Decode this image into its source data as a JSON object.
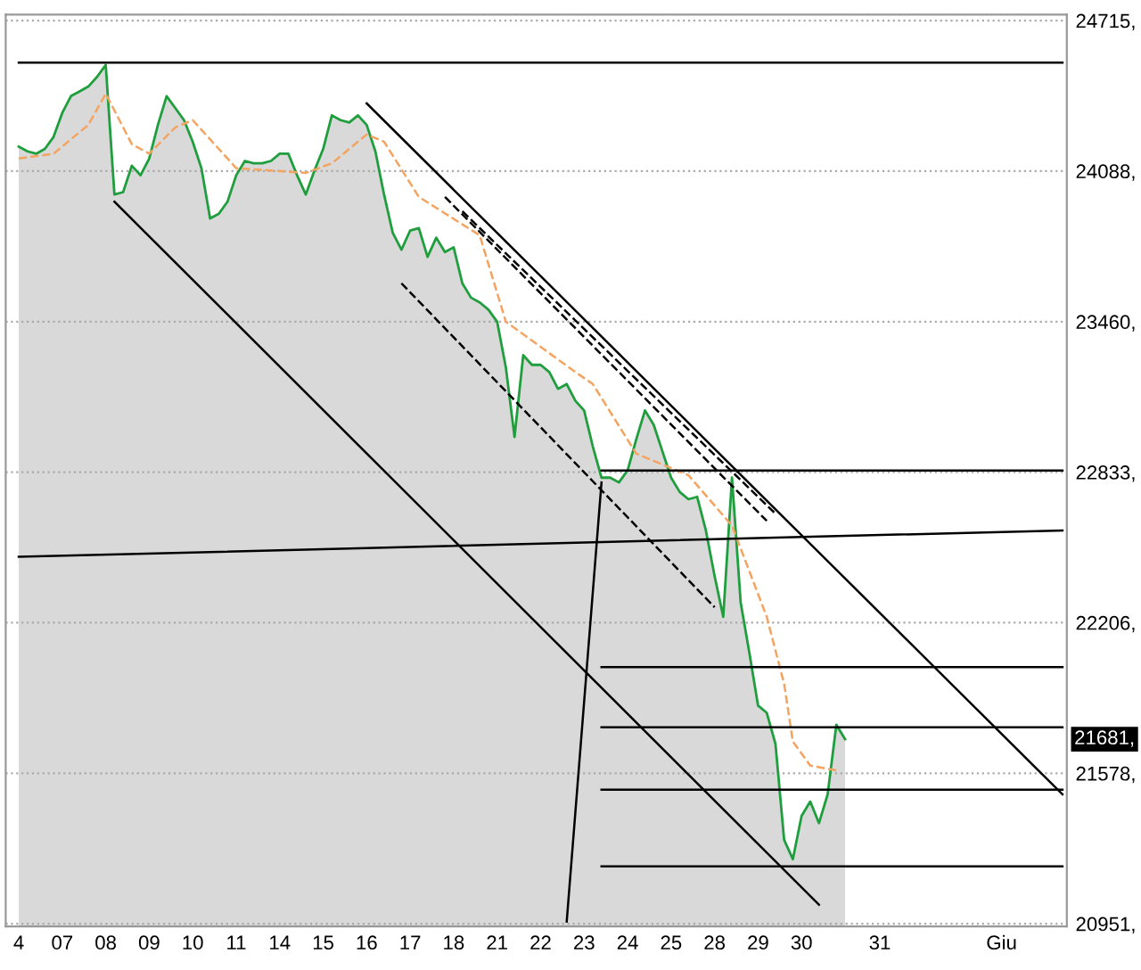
{
  "chart_data": {
    "type": "line",
    "grid": "y",
    "ylim": [
      20940,
      24740
    ],
    "categories": [
      "4",
      null,
      null,
      null,
      null,
      "07",
      null,
      null,
      null,
      null,
      "08",
      null,
      null,
      null,
      null,
      "09",
      null,
      null,
      null,
      null,
      "10",
      null,
      null,
      null,
      null,
      "11",
      null,
      null,
      null,
      null,
      "14",
      null,
      null,
      null,
      null,
      "15",
      null,
      null,
      null,
      null,
      "16",
      null,
      null,
      null,
      null,
      "17",
      null,
      null,
      null,
      null,
      "18",
      null,
      null,
      null,
      null,
      "21",
      null,
      null,
      null,
      null,
      "22",
      null,
      null,
      null,
      null,
      "23",
      null,
      null,
      null,
      null,
      "24",
      null,
      null,
      null,
      null,
      "25",
      null,
      null,
      null,
      null,
      "28",
      null,
      null,
      null,
      null,
      "29",
      null,
      null,
      null,
      null,
      "30",
      null,
      null,
      null,
      null,
      null,
      null,
      null,
      null,
      "31",
      null,
      null,
      null,
      null,
      null,
      null,
      null,
      null,
      null,
      null,
      null,
      null,
      null,
      "Giu",
      null,
      null,
      null,
      null,
      null,
      null,
      null
    ],
    "yticks": [
      {
        "value": 24715,
        "label": "24715,"
      },
      {
        "value": 24088,
        "label": "24088,"
      },
      {
        "value": 23460,
        "label": "23460,"
      },
      {
        "value": 22833,
        "label": "22833,"
      },
      {
        "value": 22206,
        "label": "22206,"
      },
      {
        "value": 21578,
        "label": "21578,"
      },
      {
        "value": 20951,
        "label": "20951,"
      }
    ],
    "annotations": [
      "21681,"
    ],
    "series": [
      {
        "type": "area",
        "color": "#1e9e3c",
        "values": [
          24190,
          24170,
          24160,
          24180,
          24230,
          24330,
          24400,
          24420,
          24440,
          24480,
          24530,
          23990,
          24000,
          24110,
          24070,
          24140,
          24280,
          24400,
          24350,
          24300,
          24210,
          24100,
          23890,
          23910,
          23960,
          24070,
          24130,
          24120,
          24120,
          24130,
          24160,
          24160,
          24070,
          23990,
          24090,
          24180,
          24320,
          24300,
          24290,
          24320,
          24280,
          24170,
          23990,
          23830,
          23760,
          23840,
          23850,
          23730,
          23810,
          23750,
          23770,
          23620,
          23560,
          23540,
          23510,
          23460,
          23270,
          22980,
          23320,
          23280,
          23280,
          23250,
          23180,
          23200,
          23130,
          23090,
          22940,
          22810,
          22810,
          22790,
          22840,
          22970,
          23090,
          23030,
          22920,
          22810,
          22750,
          22720,
          22730,
          22590,
          22400,
          22230,
          22810,
          22290,
          22080,
          21860,
          21830,
          21700,
          21300,
          21220,
          21400,
          21460,
          21370,
          21490,
          21780,
          21720,
          null,
          null,
          null,
          null,
          null,
          null,
          null,
          null,
          null,
          null,
          null,
          null,
          null,
          null,
          null,
          null,
          null,
          null,
          null,
          null,
          null,
          null,
          null,
          null,
          null
        ]
      },
      {
        "color": "#f4a460",
        "line_style": "dashed",
        "values": [
          24140,
          null,
          null,
          null,
          24160,
          null,
          null,
          null,
          24280,
          null,
          24410,
          null,
          null,
          24200,
          null,
          24160,
          null,
          null,
          24270,
          null,
          24300,
          null,
          null,
          null,
          null,
          24100,
          null,
          null,
          null,
          null,
          null,
          null,
          null,
          24080,
          null,
          null,
          24120,
          null,
          null,
          null,
          24240,
          null,
          24210,
          null,
          null,
          null,
          23980,
          null,
          null,
          null,
          null,
          null,
          null,
          23820,
          null,
          null,
          23460,
          null,
          null,
          null,
          null,
          null,
          null,
          null,
          23250,
          null,
          23200,
          null,
          null,
          null,
          null,
          22910,
          null,
          null,
          null,
          null,
          null,
          22820,
          null,
          null,
          null,
          null,
          22610,
          null,
          null,
          null,
          22230,
          null,
          21950,
          21710,
          null,
          21610,
          null,
          null,
          21590,
          null,
          null,
          null,
          null,
          null,
          null,
          null,
          null,
          null,
          null,
          null,
          null,
          null,
          null,
          null,
          null,
          null,
          null,
          null,
          null,
          null,
          null,
          null,
          null,
          null,
          null
        ]
      },
      {
        "color": "#000000",
        "values": [
          24540,
          null,
          null,
          null,
          null,
          null,
          null,
          null,
          null,
          null,
          null,
          null,
          null,
          null,
          null,
          null,
          null,
          null,
          null,
          null,
          null,
          null,
          null,
          null,
          null,
          null,
          null,
          null,
          null,
          null,
          null,
          null,
          null,
          null,
          null,
          null,
          null,
          null,
          null,
          null,
          null,
          null,
          null,
          null,
          null,
          null,
          null,
          null,
          null,
          null,
          null,
          null,
          null,
          null,
          null,
          null,
          null,
          null,
          null,
          null,
          null,
          null,
          null,
          null,
          null,
          null,
          null,
          null,
          null,
          null,
          null,
          null,
          null,
          null,
          null,
          null,
          null,
          null,
          null,
          null,
          null,
          null,
          null,
          null,
          null,
          null,
          null,
          null,
          null,
          null,
          null,
          null,
          null,
          null,
          null,
          null,
          null,
          null,
          null,
          null,
          null,
          null,
          null,
          null,
          null,
          null,
          null,
          null,
          null,
          null,
          null,
          null,
          null,
          null,
          null,
          null,
          null,
          null,
          null,
          null,
          24540
        ]
      },
      {
        "color": "#000000",
        "values": [
          null,
          null,
          null,
          null,
          null,
          null,
          null,
          null,
          null,
          null,
          null,
          23960,
          null,
          null,
          null,
          null,
          null,
          null,
          null,
          null,
          null,
          null,
          null,
          null,
          null,
          null,
          null,
          null,
          null,
          null,
          null,
          null,
          null,
          null,
          null,
          null,
          null,
          null,
          null,
          null,
          null,
          null,
          null,
          null,
          null,
          null,
          null,
          null,
          null,
          null,
          null,
          null,
          null,
          null,
          null,
          null,
          null,
          null,
          null,
          null,
          null,
          null,
          null,
          null,
          null,
          null,
          null,
          null,
          null,
          null,
          null,
          null,
          null,
          null,
          null,
          null,
          null,
          null,
          null,
          null,
          null,
          null,
          null,
          null,
          null,
          null,
          null,
          null,
          null,
          null,
          null,
          null,
          21030,
          null,
          null,
          null,
          null,
          null,
          null,
          null,
          null,
          null,
          null,
          null,
          null,
          null,
          null,
          null,
          null,
          null,
          null,
          null,
          null,
          null,
          null,
          null,
          null,
          null,
          null,
          null,
          null
        ]
      },
      {
        "color": "#000000",
        "values": [
          null,
          null,
          null,
          null,
          null,
          null,
          null,
          null,
          null,
          null,
          null,
          null,
          null,
          null,
          null,
          null,
          null,
          null,
          null,
          null,
          null,
          null,
          null,
          null,
          null,
          null,
          null,
          null,
          null,
          null,
          null,
          null,
          null,
          null,
          null,
          null,
          null,
          null,
          null,
          null,
          24370,
          null,
          null,
          null,
          null,
          null,
          null,
          null,
          null,
          null,
          null,
          null,
          null,
          null,
          null,
          null,
          null,
          null,
          null,
          null,
          null,
          null,
          null,
          null,
          null,
          null,
          null,
          null,
          null,
          null,
          null,
          null,
          null,
          null,
          null,
          null,
          null,
          null,
          null,
          null,
          null,
          null,
          null,
          null,
          null,
          null,
          null,
          null,
          null,
          null,
          null,
          null,
          null,
          null,
          null,
          null,
          null,
          null,
          null,
          null,
          null,
          null,
          null,
          null,
          null,
          null,
          null,
          null,
          null,
          null,
          null,
          null,
          null,
          null,
          null,
          null,
          null,
          null,
          null,
          null,
          21490
        ]
      },
      {
        "color": "#000000",
        "line_style": "dashed",
        "values": [
          null,
          null,
          null,
          null,
          null,
          null,
          null,
          null,
          null,
          null,
          null,
          null,
          null,
          null,
          null,
          null,
          null,
          null,
          null,
          null,
          null,
          null,
          null,
          null,
          null,
          null,
          null,
          null,
          null,
          null,
          null,
          null,
          null,
          null,
          null,
          null,
          null,
          null,
          null,
          null,
          null,
          null,
          null,
          null,
          null,
          null,
          null,
          null,
          null,
          23980,
          null,
          null,
          null,
          null,
          null,
          null,
          null,
          null,
          null,
          null,
          null,
          null,
          null,
          null,
          null,
          null,
          null,
          null,
          null,
          null,
          null,
          null,
          null,
          null,
          null,
          null,
          null,
          null,
          null,
          null,
          null,
          null,
          null,
          null,
          null,
          null,
          22630,
          null,
          null,
          null,
          null,
          null,
          null,
          null,
          null,
          null,
          null,
          null,
          null,
          null,
          null,
          null,
          null,
          null,
          null,
          null,
          null,
          null,
          null,
          null,
          null,
          null,
          null,
          null,
          null,
          null,
          null,
          null,
          null,
          null,
          null
        ]
      },
      {
        "color": "#000000",
        "line_style": "dashed",
        "values": [
          null,
          null,
          null,
          null,
          null,
          null,
          null,
          null,
          null,
          null,
          null,
          null,
          null,
          null,
          null,
          null,
          null,
          null,
          null,
          null,
          null,
          null,
          null,
          null,
          null,
          null,
          null,
          null,
          null,
          null,
          null,
          null,
          null,
          null,
          null,
          null,
          null,
          null,
          null,
          null,
          null,
          null,
          null,
          null,
          null,
          null,
          null,
          null,
          null,
          null,
          null,
          23920,
          null,
          null,
          null,
          null,
          null,
          null,
          null,
          null,
          null,
          null,
          null,
          null,
          null,
          null,
          null,
          null,
          null,
          null,
          null,
          null,
          null,
          null,
          null,
          null,
          null,
          null,
          null,
          null,
          null,
          null,
          null,
          null,
          null,
          null,
          null,
          22660,
          null,
          null,
          null,
          null,
          null,
          null,
          null,
          null,
          null,
          null,
          null,
          null,
          null,
          null,
          null,
          null,
          null,
          null,
          null,
          null,
          null,
          null,
          null,
          null,
          null,
          null,
          null,
          null,
          null,
          null,
          null,
          null,
          null
        ]
      },
      {
        "color": "#000000",
        "line_style": "dashed",
        "values": [
          null,
          null,
          null,
          null,
          null,
          null,
          null,
          null,
          null,
          null,
          null,
          null,
          null,
          null,
          null,
          null,
          null,
          null,
          null,
          null,
          null,
          null,
          null,
          null,
          null,
          null,
          null,
          null,
          null,
          null,
          null,
          null,
          null,
          null,
          null,
          null,
          null,
          null,
          null,
          null,
          null,
          null,
          null,
          null,
          23620,
          null,
          null,
          null,
          null,
          null,
          null,
          null,
          null,
          null,
          null,
          null,
          null,
          null,
          null,
          null,
          null,
          null,
          null,
          null,
          null,
          null,
          null,
          null,
          null,
          null,
          null,
          null,
          null,
          null,
          null,
          null,
          null,
          null,
          null,
          null,
          22270,
          null,
          null,
          null,
          null,
          null,
          null,
          null,
          null,
          null,
          null,
          null,
          null,
          null,
          null,
          null,
          null,
          null,
          null,
          null,
          null,
          null,
          null,
          null,
          null,
          null,
          null,
          null,
          null,
          null,
          null,
          null,
          null,
          null,
          null,
          null,
          null,
          null,
          null,
          null,
          null
        ]
      },
      {
        "color": "#000000",
        "values": [
          22480,
          null,
          null,
          null,
          null,
          null,
          null,
          null,
          null,
          null,
          null,
          null,
          null,
          null,
          null,
          null,
          null,
          null,
          null,
          null,
          null,
          null,
          null,
          null,
          null,
          null,
          null,
          null,
          null,
          null,
          null,
          null,
          null,
          null,
          null,
          null,
          null,
          null,
          null,
          null,
          null,
          null,
          null,
          null,
          null,
          null,
          null,
          null,
          null,
          null,
          null,
          null,
          null,
          null,
          null,
          null,
          null,
          null,
          null,
          null,
          null,
          null,
          null,
          null,
          null,
          null,
          null,
          null,
          null,
          null,
          null,
          null,
          null,
          null,
          null,
          null,
          null,
          null,
          null,
          null,
          null,
          null,
          null,
          null,
          null,
          null,
          null,
          null,
          null,
          null,
          null,
          null,
          null,
          null,
          null,
          null,
          null,
          null,
          null,
          null,
          null,
          null,
          null,
          null,
          null,
          null,
          null,
          null,
          null,
          null,
          null,
          null,
          null,
          null,
          null,
          null,
          null,
          null,
          null,
          null,
          22590
        ]
      },
      {
        "color": "#000000",
        "values": [
          null,
          null,
          null,
          null,
          null,
          null,
          null,
          null,
          null,
          null,
          null,
          null,
          null,
          null,
          null,
          null,
          null,
          null,
          null,
          null,
          null,
          null,
          null,
          null,
          null,
          null,
          null,
          null,
          null,
          null,
          null,
          null,
          null,
          null,
          null,
          null,
          null,
          null,
          null,
          null,
          null,
          null,
          null,
          null,
          null,
          null,
          null,
          null,
          null,
          null,
          null,
          null,
          null,
          null,
          null,
          null,
          null,
          null,
          null,
          null,
          null,
          null,
          null,
          20960,
          null,
          null,
          null,
          22790,
          null,
          null,
          null,
          null,
          null,
          null,
          null,
          null,
          null,
          null,
          null,
          null,
          null,
          null,
          null,
          null,
          null,
          null,
          null,
          null,
          null,
          null,
          null,
          null,
          null,
          null,
          null,
          null,
          null,
          null,
          null,
          null,
          null,
          null,
          null,
          null,
          null,
          null,
          null,
          null,
          null,
          null,
          null,
          null,
          null,
          null,
          null,
          null,
          null,
          null,
          null,
          null,
          null
        ]
      },
      {
        "color": "#000000",
        "values": [
          null,
          null,
          null,
          null,
          null,
          null,
          null,
          null,
          null,
          null,
          null,
          null,
          null,
          null,
          null,
          null,
          null,
          null,
          null,
          null,
          null,
          null,
          null,
          null,
          null,
          null,
          null,
          null,
          null,
          null,
          null,
          null,
          null,
          null,
          null,
          null,
          null,
          null,
          null,
          null,
          null,
          null,
          null,
          null,
          null,
          null,
          null,
          null,
          null,
          null,
          null,
          null,
          null,
          null,
          null,
          null,
          null,
          null,
          null,
          null,
          null,
          null,
          null,
          null,
          null,
          null,
          null,
          22840,
          null,
          null,
          null,
          null,
          null,
          null,
          null,
          null,
          null,
          null,
          null,
          null,
          null,
          null,
          null,
          null,
          null,
          null,
          null,
          null,
          null,
          null,
          null,
          null,
          null,
          null,
          null,
          null,
          null,
          null,
          null,
          null,
          null,
          null,
          null,
          null,
          null,
          null,
          null,
          null,
          null,
          null,
          null,
          null,
          null,
          null,
          null,
          null,
          null,
          null,
          null,
          null,
          22840
        ]
      },
      {
        "color": "#000000",
        "values": [
          null,
          null,
          null,
          null,
          null,
          null,
          null,
          null,
          null,
          null,
          null,
          null,
          null,
          null,
          null,
          null,
          null,
          null,
          null,
          null,
          null,
          null,
          null,
          null,
          null,
          null,
          null,
          null,
          null,
          null,
          null,
          null,
          null,
          null,
          null,
          null,
          null,
          null,
          null,
          null,
          null,
          null,
          null,
          null,
          null,
          null,
          null,
          null,
          null,
          null,
          null,
          null,
          null,
          null,
          null,
          null,
          null,
          null,
          null,
          null,
          null,
          null,
          null,
          null,
          null,
          null,
          null,
          22020,
          null,
          null,
          null,
          null,
          null,
          null,
          null,
          null,
          null,
          null,
          null,
          null,
          null,
          null,
          null,
          null,
          null,
          null,
          null,
          null,
          null,
          null,
          null,
          null,
          null,
          null,
          null,
          null,
          null,
          null,
          null,
          null,
          null,
          null,
          null,
          null,
          null,
          null,
          null,
          null,
          null,
          null,
          null,
          null,
          null,
          null,
          null,
          null,
          null,
          null,
          null,
          null,
          22020
        ]
      },
      {
        "color": "#000000",
        "values": [
          null,
          null,
          null,
          null,
          null,
          null,
          null,
          null,
          null,
          null,
          null,
          null,
          null,
          null,
          null,
          null,
          null,
          null,
          null,
          null,
          null,
          null,
          null,
          null,
          null,
          null,
          null,
          null,
          null,
          null,
          null,
          null,
          null,
          null,
          null,
          null,
          null,
          null,
          null,
          null,
          null,
          null,
          null,
          null,
          null,
          null,
          null,
          null,
          null,
          null,
          null,
          null,
          null,
          null,
          null,
          null,
          null,
          null,
          null,
          null,
          null,
          null,
          null,
          null,
          null,
          null,
          null,
          21770,
          null,
          null,
          null,
          null,
          null,
          null,
          null,
          null,
          null,
          null,
          null,
          null,
          null,
          null,
          null,
          null,
          null,
          null,
          null,
          null,
          null,
          null,
          null,
          null,
          null,
          null,
          null,
          null,
          null,
          null,
          null,
          null,
          null,
          null,
          null,
          null,
          null,
          null,
          null,
          null,
          null,
          null,
          null,
          null,
          null,
          null,
          null,
          null,
          null,
          null,
          null,
          null,
          21770
        ]
      },
      {
        "color": "#000000",
        "values": [
          null,
          null,
          null,
          null,
          null,
          null,
          null,
          null,
          null,
          null,
          null,
          null,
          null,
          null,
          null,
          null,
          null,
          null,
          null,
          null,
          null,
          null,
          null,
          null,
          null,
          null,
          null,
          null,
          null,
          null,
          null,
          null,
          null,
          null,
          null,
          null,
          null,
          null,
          null,
          null,
          null,
          null,
          null,
          null,
          null,
          null,
          null,
          null,
          null,
          null,
          null,
          null,
          null,
          null,
          null,
          null,
          null,
          null,
          null,
          null,
          null,
          null,
          null,
          null,
          null,
          null,
          null,
          21510,
          null,
          null,
          null,
          null,
          null,
          null,
          null,
          null,
          null,
          null,
          null,
          null,
          null,
          null,
          null,
          null,
          null,
          null,
          null,
          null,
          null,
          null,
          null,
          null,
          null,
          null,
          null,
          null,
          null,
          null,
          null,
          null,
          null,
          null,
          null,
          null,
          null,
          null,
          null,
          null,
          null,
          null,
          null,
          null,
          null,
          null,
          null,
          null,
          null,
          null,
          null,
          null,
          21510
        ]
      },
      {
        "color": "#000000",
        "values": [
          null,
          null,
          null,
          null,
          null,
          null,
          null,
          null,
          null,
          null,
          null,
          null,
          null,
          null,
          null,
          null,
          null,
          null,
          null,
          null,
          null,
          null,
          null,
          null,
          null,
          null,
          null,
          null,
          null,
          null,
          null,
          null,
          null,
          null,
          null,
          null,
          null,
          null,
          null,
          null,
          null,
          null,
          null,
          null,
          null,
          null,
          null,
          null,
          null,
          null,
          null,
          null,
          null,
          null,
          null,
          null,
          null,
          null,
          null,
          null,
          null,
          null,
          null,
          null,
          null,
          null,
          null,
          21190,
          null,
          null,
          null,
          null,
          null,
          null,
          null,
          null,
          null,
          null,
          null,
          null,
          null,
          null,
          null,
          null,
          null,
          null,
          null,
          null,
          null,
          null,
          null,
          null,
          null,
          null,
          null,
          null,
          null,
          null,
          null,
          null,
          null,
          null,
          null,
          null,
          null,
          null,
          null,
          null,
          null,
          null,
          null,
          null,
          null,
          null,
          null,
          null,
          null,
          null,
          null,
          null,
          21190
        ]
      }
    ]
  }
}
